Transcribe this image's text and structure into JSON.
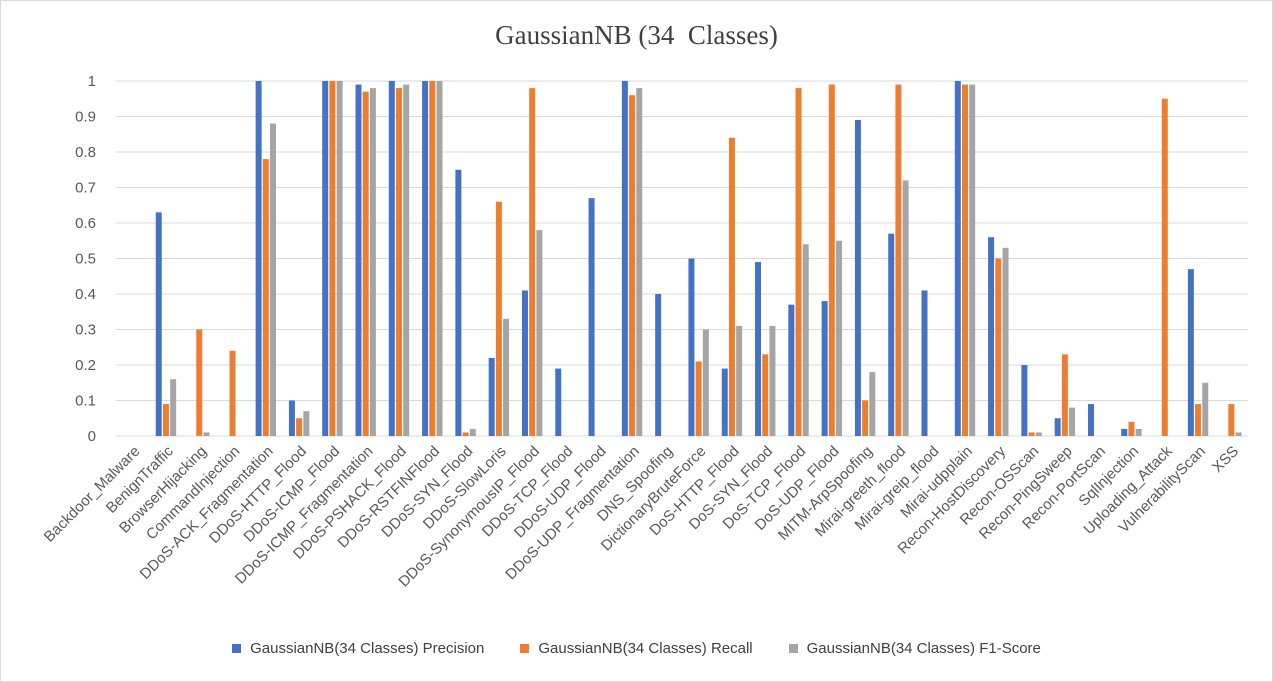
{
  "chart_data": {
    "type": "bar",
    "title": "GaussianNB (34  Classes)",
    "xlabel": "",
    "ylabel": "",
    "ylim": [
      0,
      1
    ],
    "yticks": [
      "0",
      "0.1",
      "0.2",
      "0.3",
      "0.4",
      "0.5",
      "0.6",
      "0.7",
      "0.8",
      "0.9",
      "1"
    ],
    "grid": true,
    "legend_position": "bottom",
    "categories": [
      "Backdoor_Malware",
      "BenignTraffic",
      "BrowserHijacking",
      "CommandInjection",
      "DDoS-ACK_Fragmentation",
      "DDoS-HTTP_Flood",
      "DDoS-ICMP_Flood",
      "DDoS-ICMP_Fragmentation",
      "DDoS-PSHACK_Flood",
      "DDoS-RSTFINFlood",
      "DDoS-SYN_Flood",
      "DDoS-SlowLoris",
      "DDoS-SynonymousIP_Flood",
      "DDoS-TCP_Flood",
      "DDoS-UDP_Flood",
      "DDoS-UDP_Fragmentation",
      "DNS_Spoofing",
      "DictionaryBruteForce",
      "DoS-HTTP_Flood",
      "DoS-SYN_Flood",
      "DoS-TCP_Flood",
      "DoS-UDP_Flood",
      "MITM-ArpSpoofing",
      "Mirai-greeth_flood",
      "Mirai-greip_flood",
      "Mirai-udpplain",
      "Recon-HostDiscovery",
      "Recon-OSScan",
      "Recon-PingSweep",
      "Recon-PortScan",
      "SqlInjection",
      "Uploading_Attack",
      "VulnerabilityScan",
      "XSS"
    ],
    "series": [
      {
        "name": "GaussianNB(34 Classes) Precision",
        "color": "#4472c4",
        "values": [
          0,
          0.63,
          0,
          0,
          1.0,
          0.1,
          1.0,
          0.99,
          1.0,
          1.0,
          0.75,
          0.22,
          0.41,
          0.19,
          0.67,
          1.0,
          0.4,
          0.5,
          0.19,
          0.49,
          0.37,
          0.38,
          0.89,
          0.57,
          0.41,
          1.0,
          0.56,
          0.2,
          0.05,
          0.09,
          0.02,
          0,
          0.47,
          0
        ]
      },
      {
        "name": "GaussianNB(34 Classes) Recall",
        "color": "#ed7d31",
        "values": [
          0,
          0.09,
          0.3,
          0.24,
          0.78,
          0.05,
          1.0,
          0.97,
          0.98,
          1.0,
          0.01,
          0.66,
          0.98,
          0,
          0,
          0.96,
          0,
          0.21,
          0.84,
          0.23,
          0.98,
          0.99,
          0.1,
          0.99,
          0,
          0.99,
          0.5,
          0.01,
          0.23,
          0,
          0.04,
          0.95,
          0.09,
          0.09
        ]
      },
      {
        "name": "GaussianNB(34 Classes) F1-Score",
        "color": "#a5a5a5",
        "values": [
          0,
          0.16,
          0.01,
          0,
          0.88,
          0.07,
          1.0,
          0.98,
          0.99,
          1.0,
          0.02,
          0.33,
          0.58,
          0,
          0,
          0.98,
          0,
          0.3,
          0.31,
          0.31,
          0.54,
          0.55,
          0.18,
          0.72,
          0,
          0.99,
          0.53,
          0.01,
          0.08,
          0,
          0.02,
          0,
          0.15,
          0.01
        ]
      }
    ]
  }
}
